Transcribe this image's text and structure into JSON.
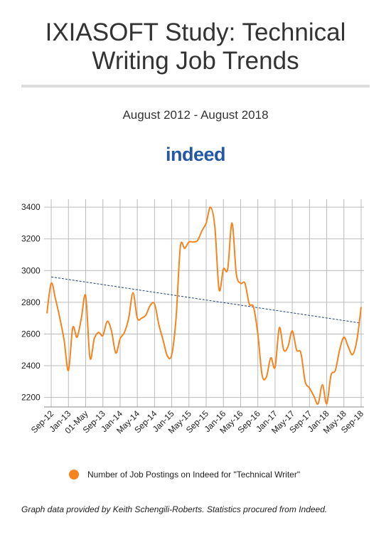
{
  "chart_data": {
    "type": "line",
    "title": "IXIASOFT Study: Technical Writing Job Trends",
    "subtitle": "August 2012 - August 2018",
    "brand": "indeed",
    "note": "Graph data provided by Keith Schengili-Roberts. Statistics procured from Indeed.",
    "categories": [
      null,
      "Sep-12",
      null,
      null,
      null,
      "Jan-13",
      null,
      null,
      null,
      "01-May",
      null,
      null,
      null,
      "Sep-13",
      null,
      null,
      null,
      "Jan-14",
      null,
      null,
      null,
      "May-14",
      null,
      null,
      null,
      "Sep-14",
      null,
      null,
      null,
      "Jan-15",
      null,
      null,
      null,
      "May-15",
      null,
      null,
      null,
      "Sep-15",
      null,
      null,
      null,
      "Jan-16",
      null,
      null,
      null,
      "May-16",
      null,
      null,
      null,
      "Sep-16",
      null,
      null,
      null,
      "Jan-17",
      null,
      null,
      null,
      "May-17",
      null,
      null,
      null,
      "Sep-17",
      null,
      null,
      null,
      "Jan-18",
      null,
      null,
      null,
      "May-18",
      null,
      null,
      null,
      "Sep-18"
    ],
    "series": [
      {
        "name": "Number of Job Postings on Indeed for \"Technical Writer\"",
        "color": "#f5841f",
        "values": [
          2730,
          2920,
          2820,
          2700,
          2560,
          2370,
          2640,
          2580,
          2700,
          2840,
          2450,
          2570,
          2610,
          2590,
          2680,
          2620,
          2480,
          2570,
          2610,
          2700,
          2860,
          2700,
          2700,
          2720,
          2780,
          2790,
          2660,
          2560,
          2460,
          2470,
          2700,
          3150,
          3140,
          3180,
          3180,
          3190,
          3250,
          3300,
          3400,
          3280,
          2880,
          3010,
          3010,
          3300,
          2980,
          2920,
          2920,
          2790,
          2770,
          2600,
          2340,
          2330,
          2450,
          2390,
          2640,
          2500,
          2520,
          2620,
          2500,
          2480,
          2300,
          2260,
          2210,
          2160,
          2280,
          2160,
          2340,
          2370,
          2500,
          2580,
          2520,
          2470,
          2560,
          2770
        ]
      }
    ],
    "trendline": {
      "start": 2960,
      "end": 2670,
      "color": "#1f3f7a",
      "dashed": true
    },
    "ylim": [
      2140,
      3450
    ],
    "yticks": [
      2200,
      2400,
      2600,
      2800,
      3000,
      3200,
      3400
    ],
    "grid": true
  }
}
